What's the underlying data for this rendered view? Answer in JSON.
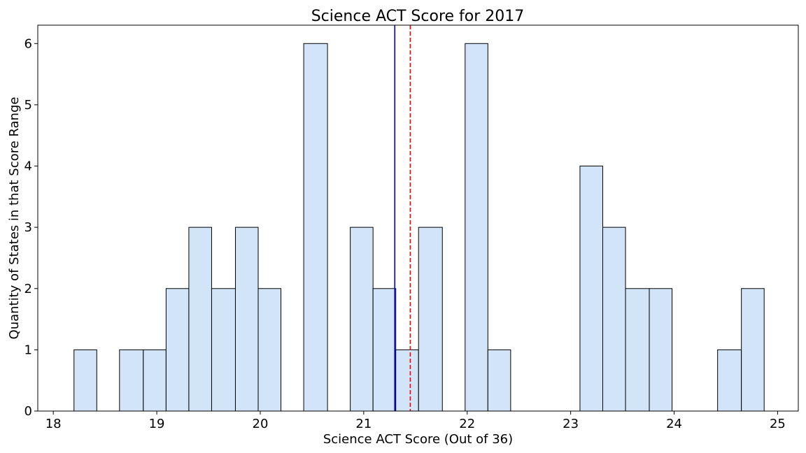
{
  "chart_data": {
    "type": "bar",
    "subtype": "histogram",
    "title": "Science ACT Score for 2017",
    "xlabel": "Science ACT Score (Out of 36)",
    "ylabel": "Quantity of States in that Score Range",
    "xlim": [
      17.85,
      25.2
    ],
    "ylim": [
      0,
      6.3
    ],
    "xticks": [
      18,
      19,
      20,
      21,
      22,
      23,
      24,
      25
    ],
    "yticks": [
      0,
      1,
      2,
      3,
      4,
      5,
      6
    ],
    "grid": false,
    "legend": "none",
    "bar_fill": "#d2e4f7",
    "bar_edge": "#000000",
    "bins": [
      {
        "x0": 18.2,
        "x1": 18.42,
        "count": 1
      },
      {
        "x0": 18.64,
        "x1": 18.87,
        "count": 1
      },
      {
        "x0": 18.87,
        "x1": 19.09,
        "count": 1
      },
      {
        "x0": 19.09,
        "x1": 19.31,
        "count": 2
      },
      {
        "x0": 19.31,
        "x1": 19.53,
        "count": 3
      },
      {
        "x0": 19.53,
        "x1": 19.76,
        "count": 2
      },
      {
        "x0": 19.76,
        "x1": 19.98,
        "count": 3
      },
      {
        "x0": 19.98,
        "x1": 20.2,
        "count": 2
      },
      {
        "x0": 20.42,
        "x1": 20.65,
        "count": 6
      },
      {
        "x0": 20.87,
        "x1": 21.09,
        "count": 3
      },
      {
        "x0": 21.09,
        "x1": 21.31,
        "count": 2
      },
      {
        "x0": 21.31,
        "x1": 21.53,
        "count": 1
      },
      {
        "x0": 21.53,
        "x1": 21.76,
        "count": 3
      },
      {
        "x0": 21.98,
        "x1": 22.2,
        "count": 6
      },
      {
        "x0": 22.2,
        "x1": 22.42,
        "count": 1
      },
      {
        "x0": 23.09,
        "x1": 23.31,
        "count": 4
      },
      {
        "x0": 23.31,
        "x1": 23.53,
        "count": 3
      },
      {
        "x0": 23.53,
        "x1": 23.76,
        "count": 2
      },
      {
        "x0": 23.76,
        "x1": 23.98,
        "count": 2
      },
      {
        "x0": 24.42,
        "x1": 24.65,
        "count": 1
      },
      {
        "x0": 24.65,
        "x1": 24.87,
        "count": 2
      }
    ],
    "reference_lines": [
      {
        "x": 21.3,
        "color": "#0000ff",
        "style": "solid"
      },
      {
        "x": 21.45,
        "color": "#ff0000",
        "style": "dashed"
      }
    ]
  }
}
